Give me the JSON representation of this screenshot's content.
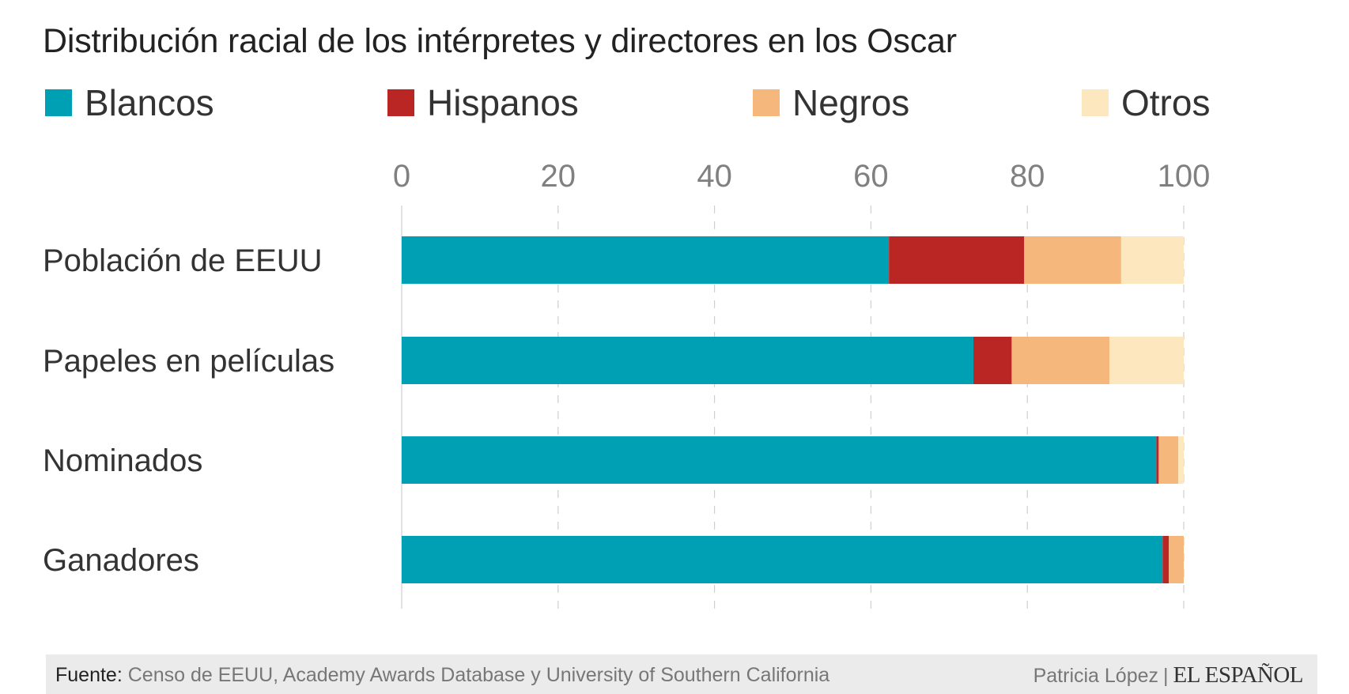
{
  "title": "Distribución racial de los intérpretes y directores en los Oscar",
  "legend": [
    {
      "label": "Blancos",
      "color": "#00a0b4"
    },
    {
      "label": "Hispanos",
      "color": "#b92623"
    },
    {
      "label": "Negros",
      "color": "#f5b77c"
    },
    {
      "label": "Otros",
      "color": "#fde7be"
    }
  ],
  "chart_data": {
    "type": "bar",
    "orientation": "horizontal",
    "stacked": true,
    "title": "Distribución racial de los intérpretes y directores en los Oscar",
    "categories": [
      "Población de EEUU",
      "Papeles en películas",
      "Nominados",
      "Ganadores"
    ],
    "series": [
      {
        "name": "Blancos",
        "color": "#00a0b4",
        "values": [
          62.3,
          73.1,
          96.5,
          97.3
        ]
      },
      {
        "name": "Hispanos",
        "color": "#b92623",
        "values": [
          17.3,
          4.9,
          0.3,
          0.8
        ]
      },
      {
        "name": "Negros",
        "color": "#f5b77c",
        "values": [
          12.4,
          12.5,
          2.5,
          1.9
        ]
      },
      {
        "name": "Otros",
        "color": "#fde7be",
        "values": [
          8.0,
          9.5,
          0.7,
          0.0
        ]
      }
    ],
    "xlim": [
      0,
      100
    ],
    "xticks": [
      "0",
      "20",
      "40",
      "60",
      "80",
      "100"
    ],
    "xaxis_position": "top",
    "grid": true,
    "legend_position": "top"
  },
  "footer": {
    "source_label": "Fuente:",
    "source_text": "Censo de EEUU, Academy Awards Database y University of Southern California",
    "author": "Patricia López",
    "separator": "|",
    "brand": "EL ESPAÑOL"
  }
}
